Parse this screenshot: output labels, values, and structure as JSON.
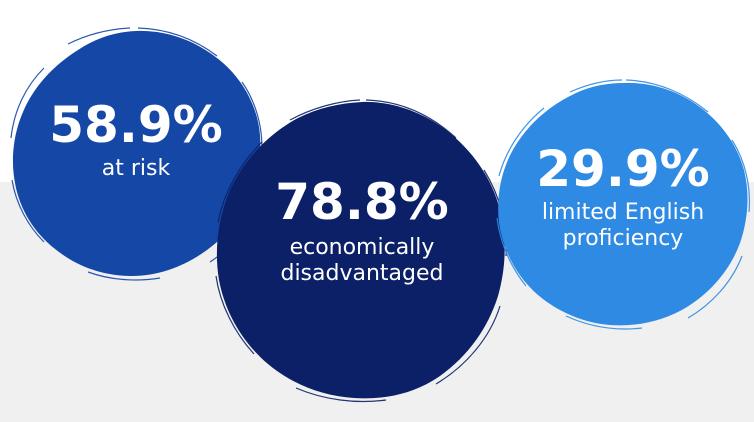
{
  "stats": [
    {
      "value": "58.9%",
      "label": "at risk",
      "color": "#1547a6"
    },
    {
      "value": "78.8%",
      "label_line1": "economically",
      "label_line2": "disadvantaged",
      "color": "#0b2066"
    },
    {
      "value": "29.9%",
      "label_line1": "limited English",
      "label_line2": "proficiency",
      "color": "#2e8ae3"
    }
  ],
  "background": {
    "top_color": "#ffffff",
    "band_color": "#f0f0f0"
  }
}
